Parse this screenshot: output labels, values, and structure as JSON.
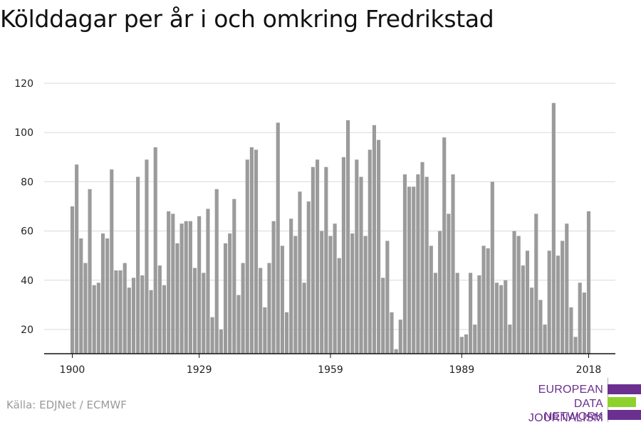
{
  "colors": {
    "bar": "#9b9b9b",
    "grid": "#d9d9d9",
    "axis": "#111111",
    "brand_purple": "#6b2f8f",
    "brand_green": "#8fd12c"
  },
  "source": "Källa: EDJNet / ECMWF",
  "logo": {
    "line1": "EUROPEAN",
    "line2": "DATA JOURNALISM",
    "line3": "NETWORK"
  },
  "chart_data": {
    "type": "bar",
    "title": "Kölddagar per år i och omkring Fredrikstad",
    "xlabel": "",
    "ylabel": "",
    "ylim": [
      10,
      125
    ],
    "yticks": [
      20,
      40,
      60,
      80,
      100,
      120
    ],
    "xticks": [
      1900,
      1929,
      1959,
      1989,
      2018
    ],
    "grid": true,
    "legend": "none",
    "x": [
      1900,
      1901,
      1902,
      1903,
      1904,
      1905,
      1906,
      1907,
      1908,
      1909,
      1910,
      1911,
      1912,
      1913,
      1914,
      1915,
      1916,
      1917,
      1918,
      1919,
      1920,
      1921,
      1922,
      1923,
      1924,
      1925,
      1926,
      1927,
      1928,
      1929,
      1930,
      1931,
      1932,
      1933,
      1934,
      1935,
      1936,
      1937,
      1938,
      1939,
      1940,
      1941,
      1942,
      1943,
      1944,
      1945,
      1946,
      1947,
      1948,
      1949,
      1950,
      1951,
      1952,
      1953,
      1954,
      1955,
      1956,
      1957,
      1958,
      1959,
      1960,
      1961,
      1962,
      1963,
      1964,
      1965,
      1966,
      1967,
      1968,
      1969,
      1970,
      1971,
      1972,
      1973,
      1974,
      1975,
      1976,
      1977,
      1978,
      1979,
      1980,
      1981,
      1982,
      1983,
      1984,
      1985,
      1986,
      1987,
      1988,
      1989,
      1990,
      1991,
      1992,
      1993,
      1994,
      1995,
      1996,
      1997,
      1998,
      1999,
      2000,
      2001,
      2002,
      2003,
      2004,
      2005,
      2006,
      2007,
      2008,
      2009,
      2010,
      2011,
      2012,
      2013,
      2014,
      2015,
      2016,
      2017,
      2018
    ],
    "values": [
      70,
      87,
      57,
      47,
      77,
      38,
      39,
      59,
      57,
      85,
      44,
      44,
      47,
      37,
      41,
      82,
      42,
      89,
      36,
      94,
      46,
      38,
      68,
      67,
      55,
      63,
      64,
      64,
      45,
      66,
      43,
      69,
      25,
      77,
      20,
      55,
      59,
      73,
      34,
      47,
      89,
      94,
      93,
      45,
      29,
      47,
      64,
      104,
      54,
      27,
      65,
      58,
      76,
      39,
      72,
      86,
      89,
      60,
      86,
      58,
      63,
      49,
      90,
      105,
      59,
      89,
      82,
      58,
      93,
      103,
      97,
      41,
      56,
      27,
      12,
      24,
      83,
      78,
      78,
      83,
      88,
      82,
      54,
      43,
      60,
      98,
      67,
      83,
      43,
      17,
      18,
      43,
      22,
      42,
      54,
      53,
      80,
      39,
      38,
      40,
      22,
      60,
      58,
      46,
      52,
      37,
      67,
      32,
      22,
      52,
      112,
      50,
      56,
      63,
      29,
      17,
      39,
      35,
      68
    ]
  }
}
